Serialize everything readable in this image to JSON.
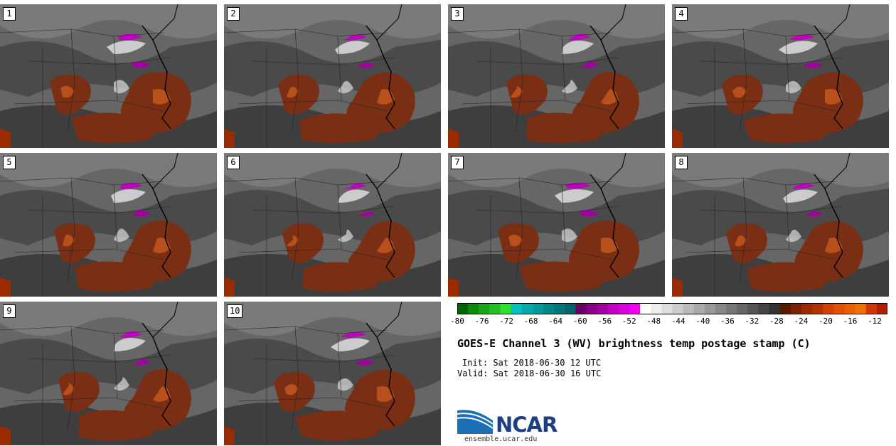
{
  "panels": [
    {
      "label": "1"
    },
    {
      "label": "2"
    },
    {
      "label": "3"
    },
    {
      "label": "4"
    },
    {
      "label": "5"
    },
    {
      "label": "6"
    },
    {
      "label": "7"
    },
    {
      "label": "8"
    },
    {
      "label": "9"
    },
    {
      "label": "10"
    }
  ],
  "colorbar": {
    "colors": [
      "#006400",
      "#0b8a0b",
      "#19a519",
      "#22c022",
      "#2de02d",
      "#00c0c0",
      "#00aaaa",
      "#009999",
      "#008888",
      "#007777",
      "#006666",
      "#660066",
      "#880088",
      "#a000a0",
      "#c000c0",
      "#d800d8",
      "#f000f0",
      "#ffffff",
      "#eeeeee",
      "#dddddd",
      "#cccccc",
      "#bbbbbb",
      "#aaaaaa",
      "#999999",
      "#888888",
      "#777777",
      "#666666",
      "#555555",
      "#444444",
      "#333333",
      "#5a1a00",
      "#7a2200",
      "#9a2a00",
      "#b03400",
      "#d04000",
      "#e05000",
      "#e86000",
      "#f07000",
      "#d03800",
      "#b02000"
    ],
    "ticks": [
      "-80",
      "-76",
      "-72",
      "-68",
      "-64",
      "-60",
      "-56",
      "-52",
      "-48",
      "-44",
      "-40",
      "-36",
      "-32",
      "-28",
      "-24",
      "-20",
      "-16",
      "-12"
    ]
  },
  "title": "GOES-E Channel 3 (WV) brightness temp postage stamp (C)",
  "init_line": "Init: Sat 2018-06-30 12 UTC",
  "valid_line": "Valid: Sat 2018-06-30 16 UTC",
  "logo": {
    "name": "NCAR",
    "url": "ensemble.ucar.edu"
  }
}
